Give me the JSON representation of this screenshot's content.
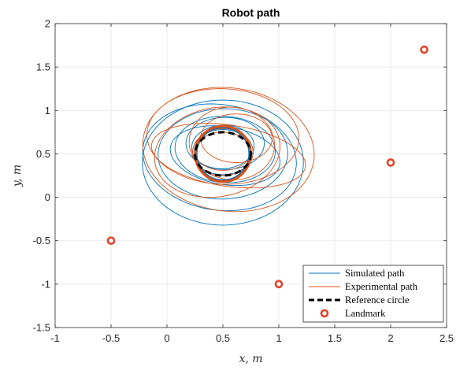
{
  "chart_data": {
    "type": "line",
    "title": "Robot path",
    "xlabel": "x, m",
    "ylabel": "y, m",
    "xlim": [
      -1,
      2.5
    ],
    "ylim": [
      -1.5,
      2
    ],
    "xticks": [
      -1,
      -0.5,
      0,
      0.5,
      1,
      1.5,
      2,
      2.5
    ],
    "xtick_labels": [
      "-1",
      "-0.5",
      "0",
      "0.5",
      "1",
      "1.5",
      "2",
      "2.5"
    ],
    "yticks": [
      -1.5,
      -1,
      -0.5,
      0,
      0.5,
      1,
      1.5,
      2
    ],
    "ytick_labels": [
      "-1.5",
      "-1",
      "-0.5",
      "0",
      "0.5",
      "1",
      "1.5",
      "2"
    ],
    "grid": true,
    "legend_position": "bottom-right",
    "colors": {
      "simulated": "#0072BD",
      "experimental": "#D95319",
      "reference": "#000000",
      "landmark": "#E8432A"
    },
    "series": [
      {
        "name": "Simulated path",
        "kind": "orbits",
        "loops": [
          {
            "cx": 0.5,
            "cy": 0.4,
            "rx": 0.72,
            "ry": 0.72,
            "rot": -15
          },
          {
            "cx": 0.47,
            "cy": 0.46,
            "rx": 0.7,
            "ry": 0.6,
            "rot": -22
          },
          {
            "cx": 0.5,
            "cy": 0.5,
            "rx": 0.58,
            "ry": 0.52,
            "rot": 5
          },
          {
            "cx": 0.52,
            "cy": 0.55,
            "rx": 0.45,
            "ry": 0.38,
            "rot": -10
          },
          {
            "cx": 0.52,
            "cy": 0.62,
            "rx": 0.35,
            "ry": 0.3,
            "rot": 0
          },
          {
            "cx": 0.5,
            "cy": 0.58,
            "rx": 0.28,
            "ry": 0.25,
            "rot": 10
          },
          {
            "cx": 0.5,
            "cy": 0.52,
            "rx": 0.27,
            "ry": 0.26,
            "rot": 0
          },
          {
            "cx": 0.52,
            "cy": 0.48,
            "rx": 0.5,
            "ry": 0.33,
            "rot": -15
          }
        ]
      },
      {
        "name": "Experimental path",
        "kind": "orbits",
        "loops": [
          {
            "cx": 0.55,
            "cy": 0.55,
            "rx": 0.78,
            "ry": 0.7,
            "rot": -25
          },
          {
            "cx": 0.5,
            "cy": 0.7,
            "rx": 0.68,
            "ry": 0.55,
            "rot": -5
          },
          {
            "cx": 0.58,
            "cy": 0.62,
            "rx": 0.38,
            "ry": 0.42,
            "rot": 10
          },
          {
            "cx": 0.45,
            "cy": 0.52,
            "rx": 0.58,
            "ry": 0.5,
            "rot": 30
          },
          {
            "cx": 0.55,
            "cy": 0.48,
            "rx": 0.7,
            "ry": 0.35,
            "rot": -12
          },
          {
            "cx": 0.62,
            "cy": 0.68,
            "rx": 0.32,
            "ry": 0.28,
            "rot": 0
          },
          {
            "cx": 0.5,
            "cy": 0.52,
            "rx": 0.27,
            "ry": 0.27,
            "rot": 0
          },
          {
            "cx": 0.5,
            "cy": 0.53,
            "rx": 0.25,
            "ry": 0.22,
            "rot": 0
          }
        ]
      },
      {
        "name": "Reference circle",
        "kind": "circle",
        "center": [
          0.5,
          0.5
        ],
        "radius": 0.25
      },
      {
        "name": "Landmark",
        "kind": "points",
        "points": [
          {
            "x": -0.5,
            "y": -0.5
          },
          {
            "x": 1,
            "y": -1
          },
          {
            "x": 2,
            "y": 0.4
          },
          {
            "x": 2.3,
            "y": 1.7
          }
        ]
      }
    ]
  }
}
